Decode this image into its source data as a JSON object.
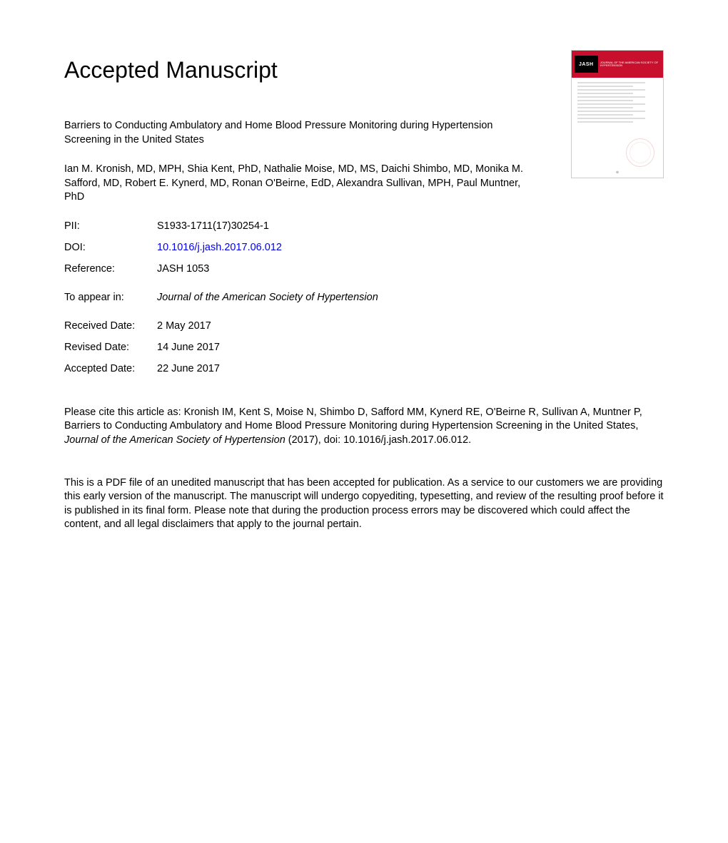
{
  "heading": "Accepted Manuscript",
  "title": "Barriers to Conducting Ambulatory and Home Blood Pressure Monitoring during Hypertension Screening in the United States",
  "authors": "Ian M. Kronish, MD, MPH, Shia Kent, PhD, Nathalie Moise, MD, MS, Daichi Shimbo, MD, Monika M. Safford, MD, Robert E. Kynerd, MD, Ronan O'Beirne, EdD, Alexandra Sullivan, MPH, Paul Muntner, PhD",
  "meta": {
    "pii_label": "PII:",
    "pii_value": "S1933-1711(17)30254-1",
    "doi_label": "DOI:",
    "doi_value": "10.1016/j.jash.2017.06.012",
    "reference_label": "Reference:",
    "reference_value": "JASH 1053",
    "appearin_label": "To appear in:",
    "appearin_value": "Journal of the American Society of Hypertension",
    "received_label": "Received Date:",
    "received_value": "2 May 2017",
    "revised_label": "Revised Date:",
    "revised_value": "14 June 2017",
    "accepted_label": "Accepted Date:",
    "accepted_value": "22 June 2017"
  },
  "citation": {
    "prefix": "Please cite this article as: Kronish IM, Kent S, Moise N, Shimbo D, Safford MM, Kynerd RE, O'Beirne R, Sullivan A, Muntner P, Barriers to Conducting Ambulatory and Home Blood Pressure Monitoring during Hypertension Screening in the United States, ",
    "journal": "Journal of the American Society of Hypertension",
    "suffix": " (2017), doi: 10.1016/j.jash.2017.06.012."
  },
  "disclaimer": "This is a PDF file of an unedited manuscript that has been accepted for publication. As a service to our customers we are providing this early version of the manuscript. The manuscript will undergo copyediting, typesetting, and review of the resulting proof before it is published in its final form. Please note that during the production process errors may be discovered which could affect the content, and all legal disclaimers that apply to the journal pertain.",
  "cover": {
    "logo": "JASH",
    "logo_sub": "JOURNAL OF THE AMERICAN SOCIETY OF HYPERTENSION",
    "red_color": "#c8102e",
    "link_color": "#0000ee"
  }
}
